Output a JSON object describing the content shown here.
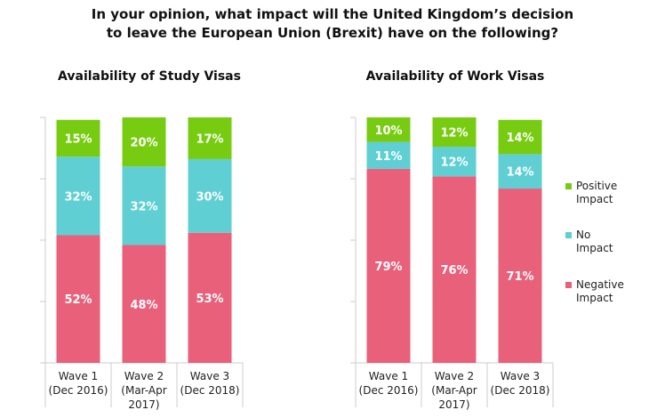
{
  "title": {
    "line1": "In your opinion, what impact will the United Kingdom’s decision",
    "line2": "to leave the European Union (Brexit) have on the following?"
  },
  "colors": {
    "positive": "#77cc11",
    "no_impact": "#5fcfd4",
    "negative": "#e9607a",
    "axis": "#cccccc",
    "bar_label": "#ffffff"
  },
  "chart_data": [
    {
      "type": "bar",
      "stacked": true,
      "title": "Availability of Study Visas",
      "categories": [
        [
          "Wave 1",
          "(Dec 2016)"
        ],
        [
          "Wave 2",
          "(Mar-Apr",
          "2017)"
        ],
        [
          "Wave 3",
          "(Dec 2018)"
        ]
      ],
      "series": [
        {
          "name": "Negative Impact",
          "key": "negative",
          "values": [
            52,
            48,
            53
          ],
          "labels": [
            "52%",
            "48%",
            "53%"
          ]
        },
        {
          "name": "No Impact",
          "key": "no_impact",
          "values": [
            32,
            32,
            30
          ],
          "labels": [
            "32%",
            "32%",
            "30%"
          ]
        },
        {
          "name": "Positive Impact",
          "key": "positive",
          "values": [
            15,
            20,
            17
          ],
          "labels": [
            "15%",
            "20%",
            "17%"
          ]
        }
      ],
      "ylim": [
        0,
        100
      ]
    },
    {
      "type": "bar",
      "stacked": true,
      "title": "Availability of Work Visas",
      "categories": [
        [
          "Wave 1",
          "(Dec 2016)"
        ],
        [
          "Wave 2",
          "(Mar-Apr",
          "2017)"
        ],
        [
          "Wave 3",
          "(Dec 2018)"
        ]
      ],
      "series": [
        {
          "name": "Negative Impact",
          "key": "negative",
          "values": [
            79,
            76,
            71
          ],
          "labels": [
            "79%",
            "76%",
            "71%"
          ]
        },
        {
          "name": "No Impact",
          "key": "no_impact",
          "values": [
            11,
            12,
            14
          ],
          "labels": [
            "11%",
            "12%",
            "14%"
          ]
        },
        {
          "name": "Positive Impact",
          "key": "positive",
          "values": [
            10,
            12,
            14
          ],
          "labels": [
            "10%",
            "12%",
            "14%"
          ]
        }
      ],
      "ylim": [
        0,
        100
      ]
    }
  ],
  "legend": {
    "placement": "right",
    "items": [
      {
        "key": "positive",
        "line1": "Positive",
        "line2": "Impact"
      },
      {
        "key": "no_impact",
        "line1": "No",
        "line2": "Impact"
      },
      {
        "key": "negative",
        "line1": "Negative",
        "line2": "Impact"
      }
    ]
  }
}
